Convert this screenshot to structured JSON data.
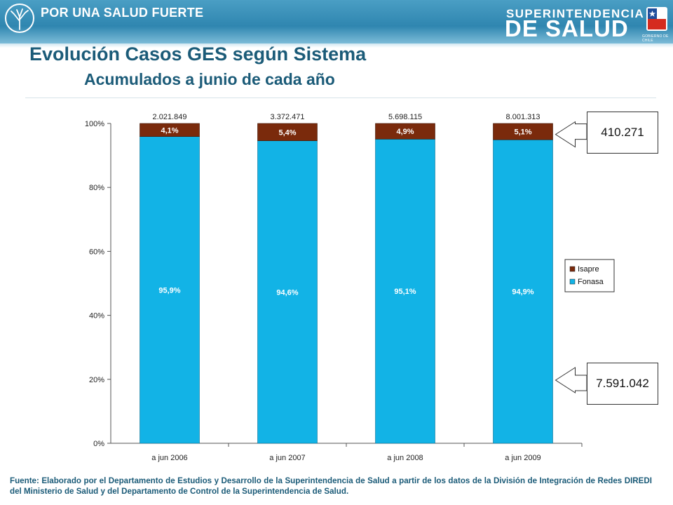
{
  "header": {
    "slogan": "POR UNA SALUD FUERTE",
    "brand_top": "SUPERINTENDENCIA",
    "brand_bottom": "DE SALUD",
    "gov_label": "GOBIERNO DE CHILE"
  },
  "title": "Evolución Casos GES según Sistema",
  "subtitle": "Acumulados a junio de cada año",
  "chart_data": {
    "type": "bar",
    "stacked": "percent",
    "categories": [
      "a jun 2006",
      "a jun 2007",
      "a jun 2008",
      "a jun 2009"
    ],
    "totals": [
      "2.021.849",
      "3.372.471",
      "5.698.115",
      "8.001.313"
    ],
    "series": [
      {
        "name": "Fonasa",
        "values": [
          95.9,
          94.6,
          95.1,
          94.9
        ],
        "labels": [
          "95,9%",
          "94,6%",
          "95,1%",
          "94,9%"
        ],
        "color": "#12b3e6"
      },
      {
        "name": "Isapre",
        "values": [
          4.1,
          5.4,
          4.9,
          5.1
        ],
        "labels": [
          "4,1%",
          "5,4%",
          "4,9%",
          "5,1%"
        ],
        "color": "#7a2a0c"
      }
    ],
    "ylim": [
      0,
      100
    ],
    "yticks": [
      0,
      20,
      40,
      60,
      80,
      100
    ],
    "ytick_labels": [
      "0%",
      "20%",
      "40%",
      "60%",
      "80%",
      "100%"
    ],
    "legend_position": "right",
    "grid": false
  },
  "callouts": {
    "isapre_2009": "410.271",
    "fonasa_2009": "7.591.042"
  },
  "footer": "Fuente: Elaborado por el Departamento de Estudios y Desarrollo de la Superintendencia de Salud a partir de los datos de la División de Integración de Redes DIREDI del Ministerio de Salud y del Departamento de Control de la Superintendencia de Salud.",
  "colors": {
    "banner": "#2f86b0",
    "title": "#1b5b78",
    "fonasa": "#12b3e6",
    "isapre": "#7a2a0c"
  }
}
